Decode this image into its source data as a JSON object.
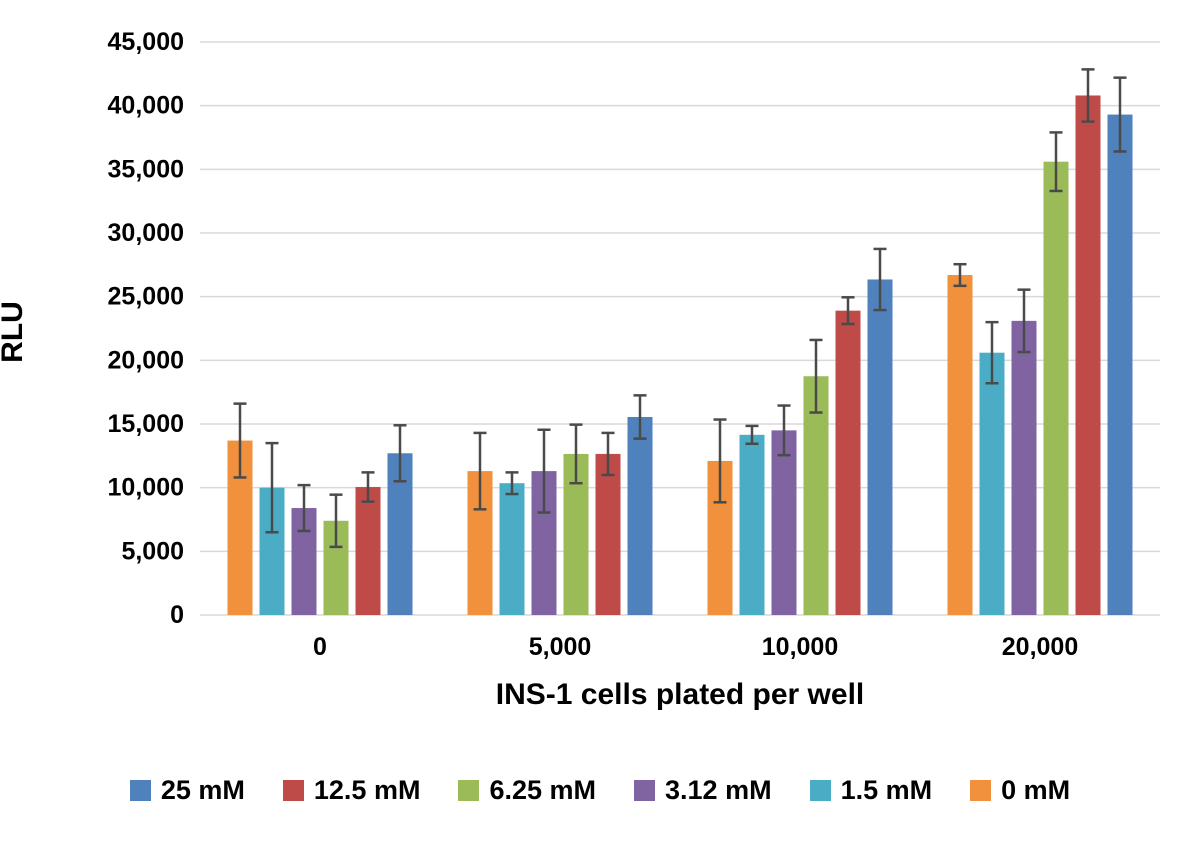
{
  "chart_data": {
    "type": "bar",
    "title": "",
    "xlabel": "INS-1 cells plated per well",
    "ylabel": "RLU",
    "categories": [
      "0",
      "5,000",
      "10,000",
      "20,000"
    ],
    "y_tick_labels": [
      "0",
      "5,000",
      "10,000",
      "15,000",
      "20,000",
      "25,000",
      "30,000",
      "35,000",
      "40,000",
      "45,000"
    ],
    "y_tick_step": 5000,
    "ylim": [
      0,
      45000
    ],
    "grid": true,
    "legend_position": "bottom",
    "bar_plot_order_within_group": [
      "0 mM",
      "1.5 mM",
      "3.12 mM",
      "6.25 mM",
      "12.5 mM",
      "25 mM"
    ],
    "series": [
      {
        "name": "25 mM",
        "color": "#4F81BD",
        "values": [
          12700,
          15550,
          26350,
          39300
        ],
        "errors": [
          2200,
          1700,
          2400,
          2900
        ]
      },
      {
        "name": "12.5 mM",
        "color": "#BF4B48",
        "values": [
          10050,
          12650,
          23900,
          40800
        ],
        "errors": [
          1150,
          1650,
          1050,
          2050
        ]
      },
      {
        "name": "6.25 mM",
        "color": "#9BBB59",
        "values": [
          7400,
          12650,
          18750,
          35600
        ],
        "errors": [
          2050,
          2300,
          2850,
          2300
        ]
      },
      {
        "name": "3.12 mM",
        "color": "#8064A2",
        "values": [
          8400,
          11300,
          14500,
          23100
        ],
        "errors": [
          1800,
          3250,
          1950,
          2450
        ]
      },
      {
        "name": "1.5 mM",
        "color": "#4BACC6",
        "values": [
          10000,
          10350,
          14150,
          20600
        ],
        "errors": [
          3500,
          850,
          700,
          2400
        ]
      },
      {
        "name": "0 mM",
        "color": "#F2913D",
        "values": [
          13700,
          11300,
          12100,
          26700
        ],
        "errors": [
          2900,
          3000,
          3250,
          850
        ]
      }
    ],
    "colors": {
      "gridline": "#D9D9D9",
      "error_bar": "#4A4A4A",
      "text": "#000000",
      "background": "#FFFFFF"
    }
  }
}
